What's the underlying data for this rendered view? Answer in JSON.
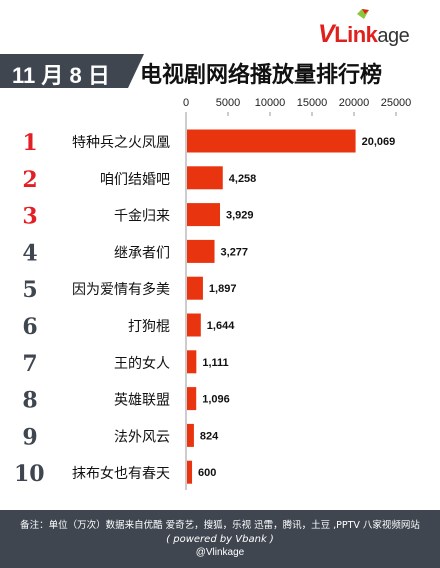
{
  "header": {
    "date": "11 月 8 日",
    "title": "电视剧网络播放量排行榜",
    "logo": {
      "v": "V",
      "mid": "Link",
      "end": "age"
    }
  },
  "footer": {
    "note": "备注：单位（万次）数据来自优酷 爱奇艺，搜狐，乐视  迅雷，腾讯，土豆 ,PPTV 八家视频网站",
    "powered": "( powered by Vbank )",
    "handle": "@Vlinkage"
  },
  "colors": {
    "bar": "#e8340f",
    "rank_top": "#e31e24",
    "rank_other": "#3f4650",
    "badge": "#3f4650"
  },
  "chart_data": {
    "type": "bar",
    "orientation": "horizontal",
    "title": "电视剧网络播放量排行榜",
    "xlim": [
      0,
      25000
    ],
    "x_ticks": [
      "0",
      "5000",
      "10000",
      "15000",
      "20000",
      "25000"
    ],
    "ranks": [
      "1",
      "2",
      "3",
      "4",
      "5",
      "6",
      "7",
      "8",
      "9",
      "10"
    ],
    "categories": [
      "特种兵之火凤凰",
      "咱们结婚吧",
      "千金归来",
      "继承者们",
      "因为爱情有多美",
      "打狗棍",
      "王的女人",
      "英雄联盟",
      "法外风云",
      "抹布女也有春天"
    ],
    "values": [
      20069,
      4258,
      3929,
      3277,
      1897,
      1644,
      1111,
      1096,
      824,
      600
    ],
    "value_labels": [
      "20,069",
      "4,258",
      "3,929",
      "3,277",
      "1,897",
      "1,644",
      "1,111",
      "1,096",
      "824",
      "600"
    ]
  }
}
